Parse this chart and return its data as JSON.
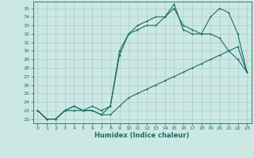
{
  "title": "",
  "xlabel": "Humidex (Indice chaleur)",
  "background_color": "#cce8e4",
  "grid_color": "#aaccca",
  "line_color": "#1a6e64",
  "xlim": [
    -0.5,
    23.5
  ],
  "ylim": [
    21.5,
    35.8
  ],
  "yticks": [
    22,
    23,
    24,
    25,
    26,
    27,
    28,
    29,
    30,
    31,
    32,
    33,
    34,
    35
  ],
  "xticks": [
    0,
    1,
    2,
    3,
    4,
    5,
    6,
    7,
    8,
    9,
    10,
    11,
    12,
    13,
    14,
    15,
    16,
    17,
    18,
    19,
    20,
    21,
    22,
    23
  ],
  "lines": [
    {
      "x": [
        0,
        1,
        2,
        3,
        4,
        5,
        6,
        7,
        8,
        9,
        10,
        11,
        12,
        13,
        14,
        15,
        16,
        17,
        18,
        19,
        20,
        21,
        22,
        23
      ],
      "y": [
        23,
        22,
        22,
        23,
        23,
        23,
        23,
        22.5,
        22.5,
        23.5,
        24.5,
        25,
        25.5,
        26,
        26.5,
        27,
        27.5,
        28,
        28.5,
        29,
        29.5,
        30,
        30.5,
        27.5
      ]
    },
    {
      "x": [
        0,
        1,
        2,
        3,
        4,
        5,
        6,
        7,
        8,
        9,
        10,
        11,
        12,
        13,
        14,
        15,
        16,
        17,
        18,
        19,
        20,
        21,
        22,
        23
      ],
      "y": [
        23,
        22,
        22,
        23,
        23.5,
        23,
        23.5,
        23,
        23.5,
        29.5,
        32,
        32.5,
        33,
        33,
        34,
        35.5,
        32.5,
        32,
        32,
        32,
        31.5,
        30,
        29,
        27.5
      ]
    },
    {
      "x": [
        0,
        1,
        2,
        3,
        4,
        5,
        6,
        7,
        8,
        9,
        10,
        11,
        12,
        13,
        14,
        15,
        16,
        17,
        18,
        19,
        20,
        21,
        22,
        23
      ],
      "y": [
        23,
        22,
        22,
        23,
        23.5,
        23,
        23,
        22.5,
        23.5,
        30,
        32,
        33,
        33.5,
        34,
        34,
        35,
        33,
        32.5,
        32,
        34,
        35,
        34.5,
        32,
        27.5
      ]
    }
  ]
}
